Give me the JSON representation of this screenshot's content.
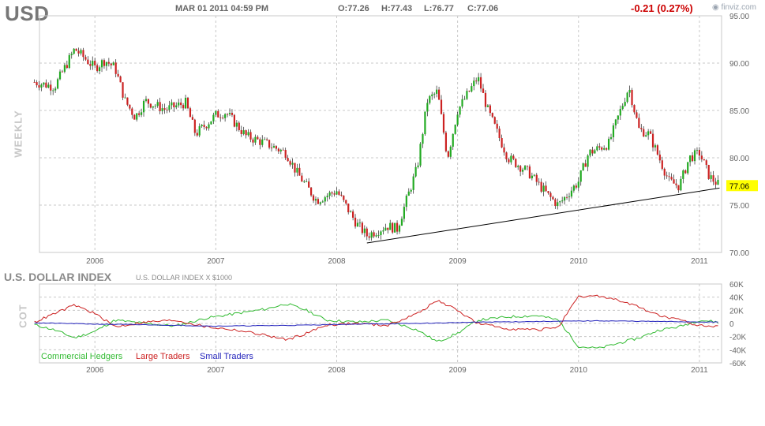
{
  "header": {
    "ticker": "USD",
    "datetime": "MAR 01 2011 04:59 PM",
    "open": "O:77.26",
    "high": "H:77.43",
    "low": "L:76.77",
    "close": "C:77.06",
    "change": "-0.21 (0.27%)",
    "brand": "finviz.com"
  },
  "labels": {
    "weekly": "WEEKLY",
    "cot": "COT",
    "index_title": "U.S. DOLLAR INDEX",
    "index_sub": "U.S. DOLLAR INDEX X $1000",
    "last_price": "77.06"
  },
  "colors": {
    "up": "#22aa22",
    "down": "#cc2222",
    "commercial": "#33bb33",
    "large": "#cc2222",
    "small": "#2222bb",
    "grid": "#c8c8c8",
    "price_tag": "#ffff00"
  },
  "chart_data": [
    {
      "type": "candlestick",
      "timeframe": "weekly",
      "x_tick_labels": [
        "2006",
        "2007",
        "2008",
        "2009",
        "2010",
        "2011"
      ],
      "y_tick_labels": [
        "95.00",
        "90.00",
        "85.00",
        "80.00",
        "75.00",
        "70.00"
      ],
      "ylim": [
        70,
        95
      ],
      "xlim": [
        "2005-07",
        "2011-03"
      ],
      "last": 77.06,
      "close_path": [
        {
          "t": "2005-07",
          "v": 88.0
        },
        {
          "t": "2005-09",
          "v": 87.5
        },
        {
          "t": "2005-11",
          "v": 91.5
        },
        {
          "t": "2006-01",
          "v": 89.5
        },
        {
          "t": "2006-02",
          "v": 90.3
        },
        {
          "t": "2006-03",
          "v": 89.5
        },
        {
          "t": "2006-04",
          "v": 86.0
        },
        {
          "t": "2006-05",
          "v": 84.3
        },
        {
          "t": "2006-06",
          "v": 86.0
        },
        {
          "t": "2006-08",
          "v": 85.1
        },
        {
          "t": "2006-10",
          "v": 85.8
        },
        {
          "t": "2006-11",
          "v": 82.5
        },
        {
          "t": "2007-01",
          "v": 84.5
        },
        {
          "t": "2007-02",
          "v": 84.8
        },
        {
          "t": "2007-04",
          "v": 82.3
        },
        {
          "t": "2007-06",
          "v": 81.5
        },
        {
          "t": "2007-08",
          "v": 80.5
        },
        {
          "t": "2007-09",
          "v": 78.5
        },
        {
          "t": "2007-11",
          "v": 75.5
        },
        {
          "t": "2008-01",
          "v": 76.5
        },
        {
          "t": "2008-03",
          "v": 73.0
        },
        {
          "t": "2008-04",
          "v": 71.8
        },
        {
          "t": "2008-06",
          "v": 72.8
        },
        {
          "t": "2008-07",
          "v": 72.5
        },
        {
          "t": "2008-09",
          "v": 79.0
        },
        {
          "t": "2008-10",
          "v": 86.0
        },
        {
          "t": "2008-11",
          "v": 87.0
        },
        {
          "t": "2008-12",
          "v": 80.0
        },
        {
          "t": "2009-01",
          "v": 85.0
        },
        {
          "t": "2009-03",
          "v": 88.5
        },
        {
          "t": "2009-04",
          "v": 85.0
        },
        {
          "t": "2009-06",
          "v": 80.0
        },
        {
          "t": "2009-08",
          "v": 78.5
        },
        {
          "t": "2009-10",
          "v": 76.0
        },
        {
          "t": "2009-11",
          "v": 75.0
        },
        {
          "t": "2010-01",
          "v": 77.5
        },
        {
          "t": "2010-02",
          "v": 80.5
        },
        {
          "t": "2010-04",
          "v": 81.5
        },
        {
          "t": "2010-05",
          "v": 84.5
        },
        {
          "t": "2010-06",
          "v": 87.5
        },
        {
          "t": "2010-07",
          "v": 83.0
        },
        {
          "t": "2010-08",
          "v": 82.5
        },
        {
          "t": "2010-09",
          "v": 80.0
        },
        {
          "t": "2010-10",
          "v": 77.5
        },
        {
          "t": "2010-11",
          "v": 77.0
        },
        {
          "t": "2010-12",
          "v": 80.0
        },
        {
          "t": "2011-01",
          "v": 80.5
        },
        {
          "t": "2011-02",
          "v": 78.0
        },
        {
          "t": "2011-03",
          "v": 77.06
        }
      ],
      "trendline": [
        {
          "t": "2008-04",
          "v": 71.0
        },
        {
          "t": "2011-03",
          "v": 76.8
        }
      ]
    },
    {
      "type": "line",
      "title": "U.S. DOLLAR INDEX",
      "y_tick_labels": [
        "60K",
        "40K",
        "20K",
        "0",
        "-20K",
        "-40K",
        "-60K"
      ],
      "ylim": [
        -60000,
        60000
      ],
      "x_tick_labels": [
        "2006",
        "2007",
        "2008",
        "2009",
        "2010",
        "2011"
      ],
      "series": [
        {
          "name": "Commercial Hedgers",
          "points": [
            {
              "t": "2005-07",
              "v": -2000
            },
            {
              "t": "2005-09",
              "v": -10000
            },
            {
              "t": "2005-11",
              "v": -22000
            },
            {
              "t": "2006-01",
              "v": -12000
            },
            {
              "t": "2006-03",
              "v": 5000
            },
            {
              "t": "2006-06",
              "v": 0
            },
            {
              "t": "2006-09",
              "v": -4000
            },
            {
              "t": "2006-12",
              "v": 8000
            },
            {
              "t": "2007-03",
              "v": 15000
            },
            {
              "t": "2007-06",
              "v": 22000
            },
            {
              "t": "2007-08",
              "v": 30000
            },
            {
              "t": "2007-10",
              "v": 20000
            },
            {
              "t": "2007-12",
              "v": 5000
            },
            {
              "t": "2008-03",
              "v": 2000
            },
            {
              "t": "2008-06",
              "v": 5000
            },
            {
              "t": "2008-09",
              "v": -10000
            },
            {
              "t": "2008-11",
              "v": -28000
            },
            {
              "t": "2009-01",
              "v": -15000
            },
            {
              "t": "2009-03",
              "v": 5000
            },
            {
              "t": "2009-06",
              "v": 10000
            },
            {
              "t": "2009-09",
              "v": 12000
            },
            {
              "t": "2009-11",
              "v": 5000
            },
            {
              "t": "2010-01",
              "v": -35000
            },
            {
              "t": "2010-03",
              "v": -38000
            },
            {
              "t": "2010-05",
              "v": -30000
            },
            {
              "t": "2010-07",
              "v": -22000
            },
            {
              "t": "2010-09",
              "v": -10000
            },
            {
              "t": "2010-11",
              "v": -5000
            },
            {
              "t": "2011-01",
              "v": 5000
            },
            {
              "t": "2011-03",
              "v": 2000
            }
          ]
        },
        {
          "name": "Large Traders",
          "points": [
            {
              "t": "2005-07",
              "v": 2000
            },
            {
              "t": "2005-09",
              "v": 15000
            },
            {
              "t": "2005-11",
              "v": 28000
            },
            {
              "t": "2006-01",
              "v": 15000
            },
            {
              "t": "2006-03",
              "v": -5000
            },
            {
              "t": "2006-06",
              "v": 2000
            },
            {
              "t": "2006-09",
              "v": 5000
            },
            {
              "t": "2006-12",
              "v": -5000
            },
            {
              "t": "2007-03",
              "v": -10000
            },
            {
              "t": "2007-06",
              "v": -18000
            },
            {
              "t": "2007-08",
              "v": -25000
            },
            {
              "t": "2007-10",
              "v": -15000
            },
            {
              "t": "2007-12",
              "v": -2000
            },
            {
              "t": "2008-03",
              "v": 0
            },
            {
              "t": "2008-06",
              "v": -3000
            },
            {
              "t": "2008-09",
              "v": 15000
            },
            {
              "t": "2008-11",
              "v": 35000
            },
            {
              "t": "2009-01",
              "v": 20000
            },
            {
              "t": "2009-03",
              "v": 0
            },
            {
              "t": "2009-06",
              "v": -8000
            },
            {
              "t": "2009-09",
              "v": -10000
            },
            {
              "t": "2009-11",
              "v": -5000
            },
            {
              "t": "2010-01",
              "v": 40000
            },
            {
              "t": "2010-03",
              "v": 42000
            },
            {
              "t": "2010-05",
              "v": 35000
            },
            {
              "t": "2010-07",
              "v": 25000
            },
            {
              "t": "2010-09",
              "v": 12000
            },
            {
              "t": "2010-11",
              "v": 5000
            },
            {
              "t": "2011-01",
              "v": -3000
            },
            {
              "t": "2011-03",
              "v": -5000
            }
          ]
        },
        {
          "name": "Small Traders",
          "points": [
            {
              "t": "2005-07",
              "v": 1000
            },
            {
              "t": "2006-01",
              "v": -1000
            },
            {
              "t": "2006-06",
              "v": -2000
            },
            {
              "t": "2007-01",
              "v": -4000
            },
            {
              "t": "2007-08",
              "v": -3000
            },
            {
              "t": "2008-03",
              "v": -1000
            },
            {
              "t": "2008-09",
              "v": 0
            },
            {
              "t": "2009-03",
              "v": 2000
            },
            {
              "t": "2009-09",
              "v": 3000
            },
            {
              "t": "2010-03",
              "v": 4000
            },
            {
              "t": "2010-09",
              "v": 3000
            },
            {
              "t": "2011-03",
              "v": 2000
            }
          ]
        }
      ]
    }
  ]
}
